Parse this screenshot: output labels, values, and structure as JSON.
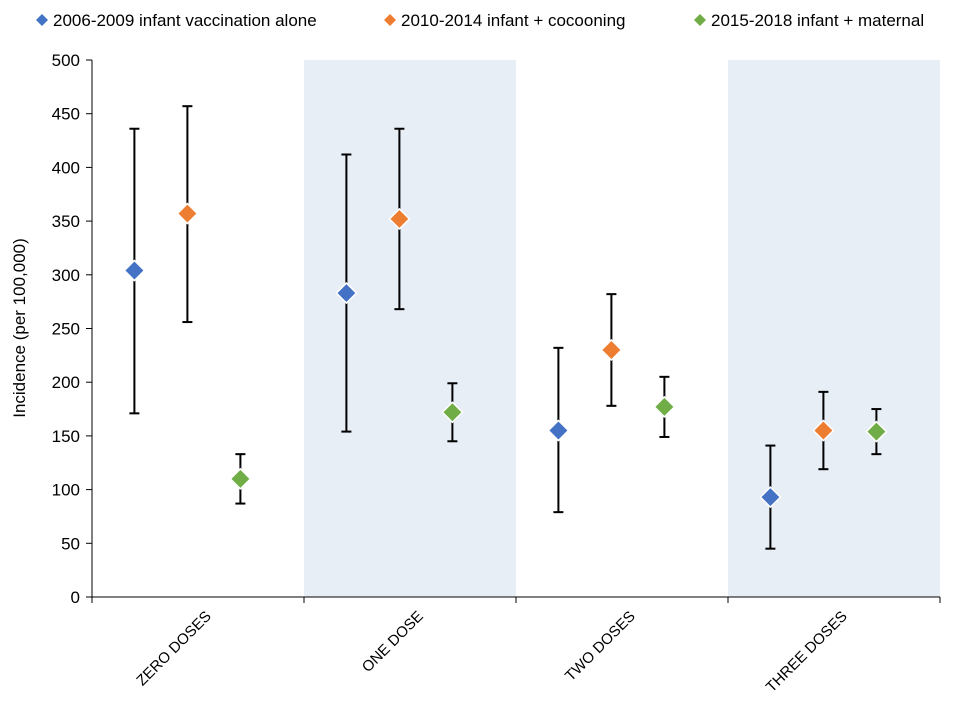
{
  "chart_data": {
    "type": "scatter",
    "title": "",
    "xlabel": "",
    "ylabel": "Incidence (per 100,000)",
    "ylim": [
      0,
      500
    ],
    "yticks": [
      0,
      50,
      100,
      150,
      200,
      250,
      300,
      350,
      400,
      450,
      500
    ],
    "categories": [
      "ZERO DOSES",
      "ONE DOSE",
      "TWO DOSES",
      "THREE DOSES"
    ],
    "shaded_categories": [
      false,
      true,
      false,
      true
    ],
    "grid": false,
    "legend_position": "top",
    "series": [
      {
        "name": "2006-2009 infant vaccination alone",
        "color": "#4472C4",
        "marker": "diamond",
        "values": [
          304,
          283,
          155,
          93
        ],
        "lower": [
          171,
          154,
          79,
          45
        ],
        "upper": [
          436,
          412,
          232,
          141
        ]
      },
      {
        "name": "2010-2014 infant + cocooning",
        "color": "#ED7D31",
        "marker": "diamond",
        "values": [
          357,
          352,
          230,
          155
        ],
        "lower": [
          256,
          268,
          178,
          119
        ],
        "upper": [
          457,
          436,
          282,
          191
        ]
      },
      {
        "name": "2015-2018 infant + maternal",
        "color": "#70AD47",
        "marker": "diamond",
        "values": [
          110,
          172,
          177,
          154
        ],
        "lower": [
          87,
          145,
          149,
          133
        ],
        "upper": [
          133,
          199,
          205,
          175
        ]
      }
    ]
  }
}
